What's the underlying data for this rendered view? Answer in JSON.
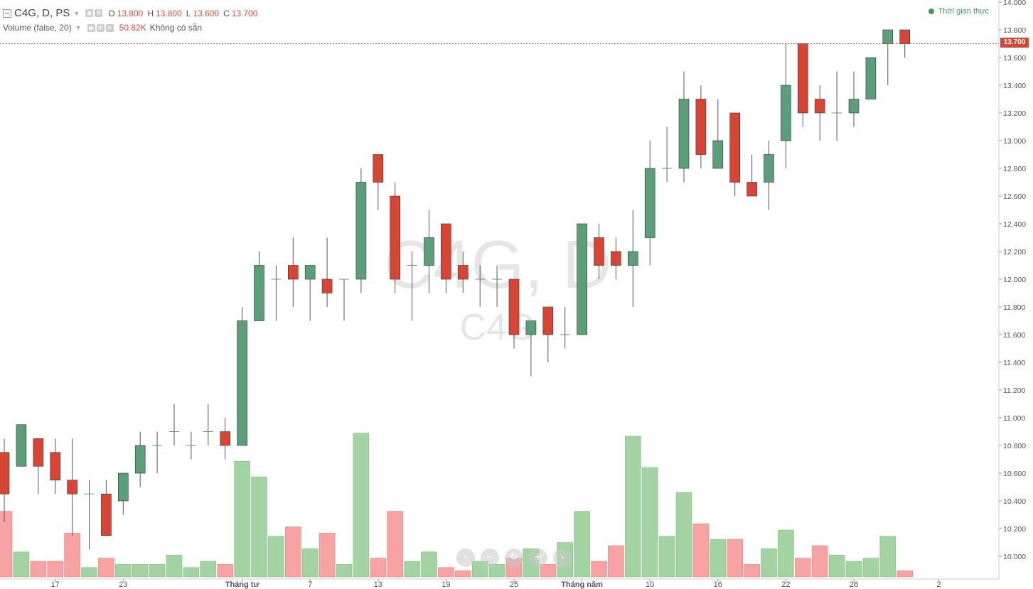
{
  "legend": {
    "symbol": "C4G, D, PS",
    "open_key": "O",
    "open": "13.800",
    "high_key": "H",
    "high": "13.800",
    "low_key": "L",
    "low": "13.600",
    "close_key": "C",
    "close": "13.700",
    "volume_study": "Volume (false, 20)",
    "volume_value": "50.82K",
    "volume_na": "Không có sẵn"
  },
  "realtime_label": "Thời gian thực",
  "watermark": {
    "main": "C4G, D",
    "sub": "C4G"
  },
  "last_price_label": "13.700",
  "nav_buttons": [
    "‹",
    "−",
    "↻",
    "+",
    "›"
  ],
  "colors": {
    "up": "#5b9e7a",
    "down": "#d94535",
    "vol_up": "#a3d3a3",
    "vol_down": "#f7a3a3",
    "axis_text": "#555555"
  },
  "chart_data": {
    "type": "candlestick",
    "y_axis": {
      "ticks": [
        "14.000",
        "13.800",
        "13.600",
        "13.400",
        "13.200",
        "13.000",
        "12.800",
        "12.600",
        "12.400",
        "12.200",
        "12.000",
        "11.800",
        "11.600",
        "11.400",
        "11.200",
        "11.000",
        "10.800",
        "10.600",
        "10.400",
        "10.200",
        "10.000"
      ],
      "range": [
        9.85,
        14.0
      ]
    },
    "x_axis": {
      "ticks": [
        {
          "i": 3,
          "label": "17"
        },
        {
          "i": 7,
          "label": "23"
        },
        {
          "i": 14,
          "label": "Tháng tư"
        },
        {
          "i": 18,
          "label": "7"
        },
        {
          "i": 22,
          "label": "13"
        },
        {
          "i": 26,
          "label": "19"
        },
        {
          "i": 30,
          "label": "25"
        },
        {
          "i": 34,
          "label": "Tháng năm"
        },
        {
          "i": 38,
          "label": "10"
        },
        {
          "i": 42,
          "label": "16"
        },
        {
          "i": 46,
          "label": "22"
        },
        {
          "i": 50,
          "label": "26"
        },
        {
          "i": 55,
          "label": "2"
        }
      ]
    },
    "candles": [
      {
        "o": 10.75,
        "h": 10.85,
        "l": 10.25,
        "c": 10.45,
        "v": 0.21
      },
      {
        "o": 10.65,
        "h": 10.95,
        "l": 10.65,
        "c": 10.95,
        "v": 0.08
      },
      {
        "o": 10.85,
        "h": 10.85,
        "l": 10.45,
        "c": 10.65,
        "v": 0.05
      },
      {
        "o": 10.75,
        "h": 10.85,
        "l": 10.45,
        "c": 10.55,
        "v": 0.05
      },
      {
        "o": 10.55,
        "h": 10.85,
        "l": 10.15,
        "c": 10.45,
        "v": 0.14
      },
      {
        "o": 10.45,
        "h": 10.55,
        "l": 10.05,
        "c": 10.45,
        "v": 0.03
      },
      {
        "o": 10.45,
        "h": 10.55,
        "l": 10.15,
        "c": 10.15,
        "v": 0.06
      },
      {
        "o": 10.4,
        "h": 10.6,
        "l": 10.3,
        "c": 10.6,
        "v": 0.04
      },
      {
        "o": 10.6,
        "h": 10.9,
        "l": 10.5,
        "c": 10.8,
        "v": 0.04
      },
      {
        "o": 10.8,
        "h": 10.9,
        "l": 10.6,
        "c": 10.8,
        "v": 0.04
      },
      {
        "o": 10.9,
        "h": 11.1,
        "l": 10.8,
        "c": 10.9,
        "v": 0.07
      },
      {
        "o": 10.8,
        "h": 10.9,
        "l": 10.7,
        "c": 10.8,
        "v": 0.03
      },
      {
        "o": 10.9,
        "h": 11.1,
        "l": 10.8,
        "c": 10.9,
        "v": 0.05
      },
      {
        "o": 10.9,
        "h": 11.0,
        "l": 10.7,
        "c": 10.8,
        "v": 0.04
      },
      {
        "o": 10.8,
        "h": 11.8,
        "l": 10.8,
        "c": 11.7,
        "v": 0.37
      },
      {
        "o": 11.7,
        "h": 12.2,
        "l": 11.7,
        "c": 12.1,
        "v": 0.32
      },
      {
        "o": 12.0,
        "h": 12.1,
        "l": 11.7,
        "c": 12.0,
        "v": 0.13
      },
      {
        "o": 12.1,
        "h": 12.3,
        "l": 11.8,
        "c": 12.0,
        "v": 0.16
      },
      {
        "o": 12.0,
        "h": 12.1,
        "l": 11.7,
        "c": 12.1,
        "v": 0.09
      },
      {
        "o": 12.0,
        "h": 12.3,
        "l": 11.8,
        "c": 11.9,
        "v": 0.14
      },
      {
        "o": 12.0,
        "h": 12.0,
        "l": 11.7,
        "c": 12.0,
        "v": 0.04
      },
      {
        "o": 12.0,
        "h": 12.8,
        "l": 11.9,
        "c": 12.7,
        "v": 0.46
      },
      {
        "o": 12.9,
        "h": 12.9,
        "l": 12.5,
        "c": 12.7,
        "v": 0.06
      },
      {
        "o": 12.6,
        "h": 12.7,
        "l": 11.9,
        "c": 12.0,
        "v": 0.21
      },
      {
        "o": 12.1,
        "h": 12.2,
        "l": 11.7,
        "c": 12.1,
        "v": 0.05
      },
      {
        "o": 12.1,
        "h": 12.5,
        "l": 11.9,
        "c": 12.3,
        "v": 0.08
      },
      {
        "o": 12.4,
        "h": 12.4,
        "l": 11.9,
        "c": 12.0,
        "v": 0.03
      },
      {
        "o": 12.1,
        "h": 12.2,
        "l": 11.9,
        "c": 12.0,
        "v": 0.02
      },
      {
        "o": 12.0,
        "h": 12.1,
        "l": 11.8,
        "c": 12.0,
        "v": 0.05
      },
      {
        "o": 12.0,
        "h": 12.1,
        "l": 11.8,
        "c": 12.0,
        "v": 0.04
      },
      {
        "o": 12.0,
        "h": 12.0,
        "l": 11.5,
        "c": 11.6,
        "v": 0.06
      },
      {
        "o": 11.6,
        "h": 11.7,
        "l": 11.3,
        "c": 11.7,
        "v": 0.09
      },
      {
        "o": 11.8,
        "h": 11.8,
        "l": 11.4,
        "c": 11.6,
        "v": 0.04
      },
      {
        "o": 11.6,
        "h": 11.8,
        "l": 11.5,
        "c": 11.6,
        "v": 0.11
      },
      {
        "o": 11.6,
        "h": 12.4,
        "l": 11.6,
        "c": 12.4,
        "v": 0.21
      },
      {
        "o": 12.3,
        "h": 12.4,
        "l": 12.0,
        "c": 12.1,
        "v": 0.05
      },
      {
        "o": 12.2,
        "h": 12.3,
        "l": 12.0,
        "c": 12.1,
        "v": 0.1
      },
      {
        "o": 12.1,
        "h": 12.5,
        "l": 11.8,
        "c": 12.2,
        "v": 0.45
      },
      {
        "o": 12.3,
        "h": 13.0,
        "l": 12.1,
        "c": 12.8,
        "v": 0.35
      },
      {
        "o": 12.8,
        "h": 13.1,
        "l": 12.7,
        "c": 12.8,
        "v": 0.13
      },
      {
        "o": 12.8,
        "h": 13.5,
        "l": 12.7,
        "c": 13.3,
        "v": 0.27
      },
      {
        "o": 13.3,
        "h": 13.4,
        "l": 12.8,
        "c": 12.9,
        "v": 0.17
      },
      {
        "o": 12.8,
        "h": 13.3,
        "l": 12.8,
        "c": 13.0,
        "v": 0.12
      },
      {
        "o": 13.2,
        "h": 13.2,
        "l": 12.6,
        "c": 12.7,
        "v": 0.12
      },
      {
        "o": 12.7,
        "h": 12.9,
        "l": 12.6,
        "c": 12.6,
        "v": 0.04
      },
      {
        "o": 12.7,
        "h": 13.0,
        "l": 12.5,
        "c": 12.9,
        "v": 0.09
      },
      {
        "o": 13.0,
        "h": 13.7,
        "l": 12.8,
        "c": 13.4,
        "v": 0.15
      },
      {
        "o": 13.7,
        "h": 13.7,
        "l": 13.1,
        "c": 13.2,
        "v": 0.06
      },
      {
        "o": 13.3,
        "h": 13.4,
        "l": 13.0,
        "c": 13.2,
        "v": 0.1
      },
      {
        "o": 13.2,
        "h": 13.5,
        "l": 13.0,
        "c": 13.2,
        "v": 0.07
      },
      {
        "o": 13.2,
        "h": 13.5,
        "l": 13.1,
        "c": 13.3,
        "v": 0.05
      },
      {
        "o": 13.3,
        "h": 13.6,
        "l": 13.3,
        "c": 13.6,
        "v": 0.06
      },
      {
        "o": 13.7,
        "h": 13.8,
        "l": 13.4,
        "c": 13.8,
        "v": 0.13
      },
      {
        "o": 13.8,
        "h": 13.8,
        "l": 13.6,
        "c": 13.7,
        "v": 0.02
      }
    ]
  }
}
